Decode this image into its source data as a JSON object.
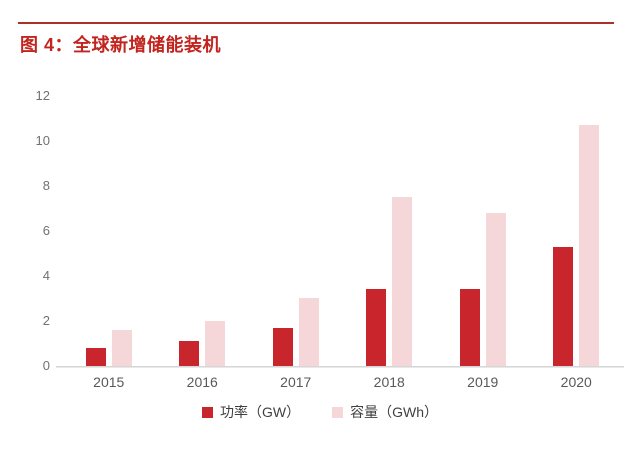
{
  "figure": {
    "title": "图 4：全球新增储能装机"
  },
  "chart_data": {
    "type": "bar",
    "title": "全球新增储能装机",
    "categories": [
      "2015",
      "2016",
      "2017",
      "2018",
      "2019",
      "2020"
    ],
    "series": [
      {
        "name": "功率（GW）",
        "color": "#c8252c",
        "values": [
          0.8,
          1.1,
          1.7,
          3.4,
          3.4,
          5.3
        ]
      },
      {
        "name": "容量（GWh）",
        "color": "#f5d7d9",
        "values": [
          1.6,
          2.0,
          3.0,
          7.5,
          6.8,
          10.7
        ]
      }
    ],
    "xlabel": "",
    "ylabel": "",
    "ylim": [
      0,
      12
    ],
    "yticks": [
      0,
      2,
      4,
      6,
      8,
      10,
      12
    ],
    "grid": false,
    "legend_position": "bottom"
  },
  "colors": {
    "title_red": "#c2251f",
    "rule_red": "#a93226",
    "axis_gray": "#d6d6d6",
    "tick_text": "#717171",
    "xlabel_text": "#595959",
    "legend_text": "#404040"
  }
}
